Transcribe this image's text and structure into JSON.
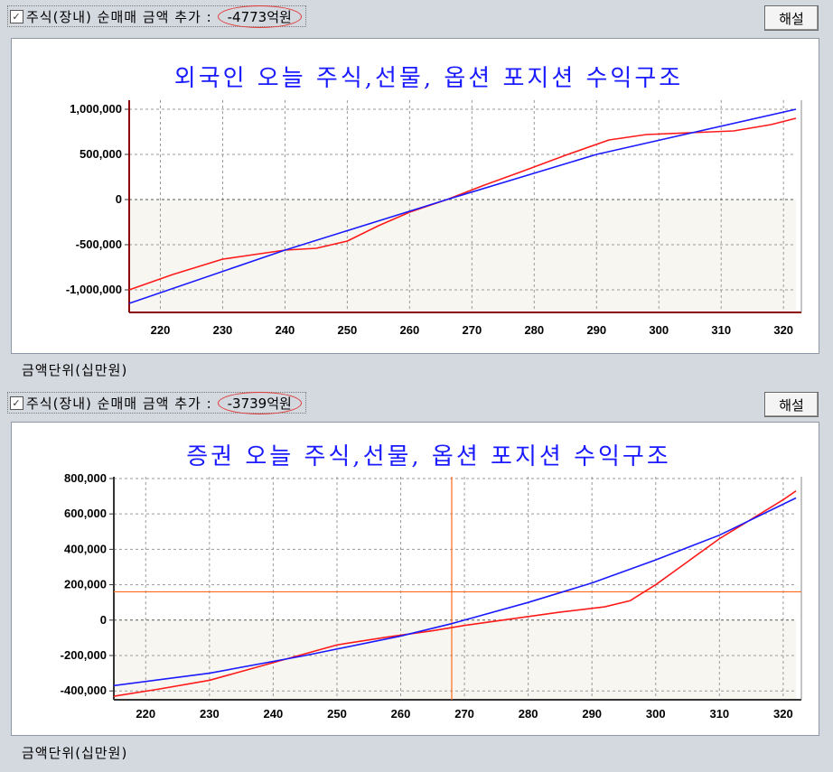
{
  "colors": {
    "foreigner_line_red": "#ff1a1a",
    "foreigner_line_blue": "#1a1aff",
    "crosshair": "#ff6a1a",
    "highlight_circle": "#e03a3a"
  },
  "panels": [
    {
      "checkbox_label": "주식(장내) 순매매 금액 추가 :",
      "amount": "-4773억원",
      "explain_button": "해설",
      "unit_label": "금액단위(십만원)"
    },
    {
      "checkbox_label": "주식(장내) 순매매 금액 추가 :",
      "amount": "-3739억원",
      "explain_button": "해설",
      "unit_label": "금액단위(십만원)"
    }
  ],
  "chart_data": [
    {
      "type": "line",
      "title": "외국인 오늘 주식,선물, 옵션 포지션 수익구조",
      "xlim": [
        215,
        322
      ],
      "ylim": [
        -1250000,
        1100000
      ],
      "x_ticks": [
        220,
        230,
        240,
        250,
        260,
        270,
        280,
        290,
        300,
        310,
        320
      ],
      "y_ticks": [
        {
          "value": 1000000,
          "label": "1,000,000"
        },
        {
          "value": 500000,
          "label": "500,000"
        },
        {
          "value": 0,
          "label": "0"
        },
        {
          "value": -500000,
          "label": "-500,000"
        },
        {
          "value": -1000000,
          "label": "-1,000,000"
        }
      ],
      "grid": true,
      "series": [
        {
          "color": "#ff1a1a",
          "x": [
            215,
            222,
            230,
            235,
            240,
            245,
            250,
            255,
            260,
            266,
            272,
            278,
            285,
            292,
            298,
            305,
            312,
            318,
            322
          ],
          "y": [
            -1000000,
            -830000,
            -660000,
            -610000,
            -560000,
            -540000,
            -460000,
            -290000,
            -140000,
            0,
            160000,
            310000,
            490000,
            660000,
            720000,
            740000,
            760000,
            830000,
            900000
          ]
        },
        {
          "color": "#1a1aff",
          "x": [
            215,
            240,
            266,
            290,
            322
          ],
          "y": [
            -1150000,
            -560000,
            0,
            500000,
            1000000
          ]
        }
      ],
      "crosshair": null
    },
    {
      "type": "line",
      "title": "증권 오늘 주식,선물, 옵션 포지션 수익구조",
      "xlim": [
        215,
        322
      ],
      "ylim": [
        -450000,
        810000
      ],
      "x_ticks": [
        220,
        230,
        240,
        250,
        260,
        270,
        280,
        290,
        300,
        310,
        320
      ],
      "y_ticks": [
        {
          "value": 800000,
          "label": "800,000"
        },
        {
          "value": 600000,
          "label": "600,000"
        },
        {
          "value": 400000,
          "label": "400,000"
        },
        {
          "value": 200000,
          "label": "200,000"
        },
        {
          "value": 0,
          "label": "0"
        },
        {
          "value": -200000,
          "label": "-200,000"
        },
        {
          "value": -400000,
          "label": "-400,000"
        }
      ],
      "grid": true,
      "series": [
        {
          "color": "#ff1a1a",
          "x": [
            215,
            222,
            230,
            240,
            250,
            258,
            265,
            270,
            278,
            285,
            292,
            296,
            300,
            305,
            310,
            315,
            320,
            322
          ],
          "y": [
            -430000,
            -390000,
            -340000,
            -240000,
            -140000,
            -95000,
            -60000,
            -30000,
            10000,
            45000,
            75000,
            110000,
            200000,
            330000,
            460000,
            570000,
            680000,
            730000
          ]
        },
        {
          "color": "#1a1aff",
          "x": [
            215,
            230,
            245,
            260,
            268,
            280,
            290,
            300,
            310,
            322
          ],
          "y": [
            -370000,
            -300000,
            -200000,
            -90000,
            -20000,
            100000,
            210000,
            340000,
            480000,
            690000
          ]
        }
      ],
      "crosshair": {
        "x": 268,
        "y": 160000
      }
    }
  ]
}
